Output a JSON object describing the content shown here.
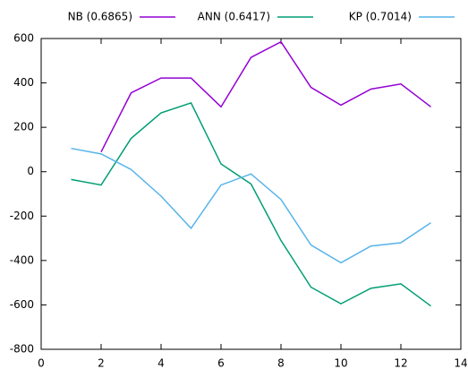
{
  "chart_data": {
    "type": "line",
    "x": [
      1,
      2,
      3,
      4,
      5,
      6,
      7,
      8,
      9,
      10,
      11,
      12,
      13
    ],
    "series": [
      {
        "name": "NB (0.6865)",
        "color": "#9400d3",
        "values": [
          null,
          89,
          355,
          422,
          422,
          292,
          515,
          585,
          380,
          300,
          372,
          395,
          292
        ]
      },
      {
        "name": "ANN (0.6417)",
        "color": "#009e73",
        "values": [
          -35,
          -60,
          150,
          265,
          310,
          35,
          -55,
          -310,
          -520,
          -595,
          -525,
          -505,
          -605
        ]
      },
      {
        "name": "KP (0.7014)",
        "color": "#56b4e9",
        "values": [
          105,
          80,
          10,
          -110,
          -255,
          -60,
          -10,
          -125,
          -330,
          -410,
          -335,
          -320,
          -230
        ]
      }
    ],
    "xlim": [
      0,
      14
    ],
    "xticks": [
      0,
      2,
      4,
      6,
      8,
      10,
      12,
      14
    ],
    "ylim": [
      -800,
      600
    ],
    "yticks": [
      -800,
      -600,
      -400,
      -200,
      0,
      200,
      400,
      600
    ],
    "grid": false,
    "legend": "top"
  }
}
